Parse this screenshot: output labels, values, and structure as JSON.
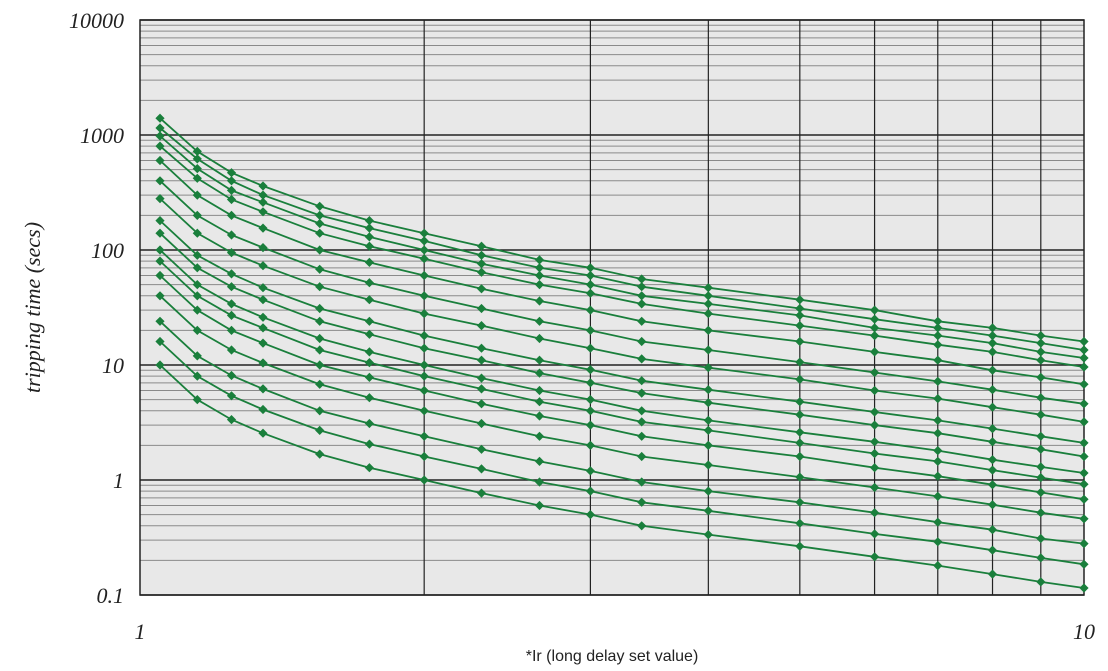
{
  "chart_data": {
    "type": "line",
    "title": "",
    "xlabel": "*Ir (long delay set value)",
    "ylabel": "tripping time (secs)",
    "x_scale": "log",
    "y_scale": "log",
    "xlim": [
      1,
      10
    ],
    "ylim": [
      0.1,
      10000
    ],
    "x_tick_labels": [
      "1",
      "10"
    ],
    "y_tick_labels": [
      "10000",
      "1000",
      "100",
      "10",
      "1",
      "0.1"
    ],
    "grid": true,
    "legend": "none",
    "colors": {
      "series": "#1a7f3c",
      "plot_background": "#e8e8e8",
      "major_grid": "#222222",
      "minor_grid": "#8a8a8a"
    },
    "x": [
      1.05,
      1.15,
      1.25,
      1.35,
      1.55,
      1.75,
      2.0,
      2.3,
      2.65,
      3.0,
      3.4,
      4.0,
      5.0,
      6.0,
      7.0,
      8.0,
      9.0,
      10.0
    ],
    "series": [
      {
        "values": [
          1400,
          720,
          470,
          360,
          240,
          180,
          140,
          108,
          82,
          70,
          56,
          47,
          37,
          30,
          24,
          21,
          18,
          16
        ]
      },
      {
        "values": [
          1150,
          620,
          400,
          300,
          200,
          155,
          120,
          90,
          70,
          60,
          48,
          40,
          31,
          25,
          21,
          18,
          15.5,
          13.5
        ]
      },
      {
        "values": [
          980,
          510,
          330,
          260,
          170,
          130,
          100,
          76,
          60,
          50,
          40,
          34,
          27,
          21,
          18,
          15.5,
          13,
          11.5
        ]
      },
      {
        "values": [
          800,
          420,
          275,
          215,
          140,
          108,
          84,
          64,
          50,
          42,
          34,
          28,
          22,
          18,
          15,
          13,
          11,
          9.6
        ]
      },
      {
        "values": [
          600,
          300,
          200,
          155,
          100,
          78,
          60,
          46,
          36,
          30,
          24,
          20,
          16,
          13,
          11,
          9,
          7.8,
          6.8
        ]
      },
      {
        "values": [
          400,
          200,
          135,
          105,
          68,
          52,
          40,
          31,
          24,
          20,
          16,
          13.5,
          10.6,
          8.6,
          7.2,
          6.1,
          5.2,
          4.6
        ]
      },
      {
        "values": [
          280,
          140,
          95,
          73,
          48,
          37,
          28,
          22,
          17,
          14,
          11.3,
          9.5,
          7.5,
          6,
          5.1,
          4.3,
          3.7,
          3.2
        ]
      },
      {
        "values": [
          180,
          90,
          62,
          47,
          31,
          24,
          18,
          14,
          11,
          9.1,
          7.3,
          6.1,
          4.8,
          3.9,
          3.3,
          2.8,
          2.4,
          2.1
        ]
      },
      {
        "values": [
          140,
          70,
          48,
          37,
          24,
          18.5,
          14,
          11,
          8.5,
          7,
          5.7,
          4.7,
          3.7,
          3,
          2.55,
          2.15,
          1.85,
          1.6
        ]
      },
      {
        "values": [
          100,
          50,
          34,
          26,
          17,
          13,
          10,
          7.7,
          6,
          5,
          4,
          3.3,
          2.6,
          2.15,
          1.8,
          1.5,
          1.3,
          1.15
        ]
      },
      {
        "values": [
          80,
          40,
          27,
          21,
          13.5,
          10.5,
          8,
          6.2,
          4.8,
          4,
          3.2,
          2.7,
          2.1,
          1.7,
          1.45,
          1.22,
          1.05,
          0.92
        ]
      },
      {
        "values": [
          60,
          30,
          20,
          15.5,
          10,
          7.8,
          6,
          4.6,
          3.6,
          3,
          2.4,
          2,
          1.6,
          1.28,
          1.08,
          0.91,
          0.78,
          0.68
        ]
      },
      {
        "values": [
          40,
          20,
          13.5,
          10.4,
          6.8,
          5.2,
          4,
          3.1,
          2.4,
          2,
          1.6,
          1.35,
          1.06,
          0.86,
          0.72,
          0.61,
          0.52,
          0.46
        ]
      },
      {
        "values": [
          24,
          12,
          8.1,
          6.2,
          4,
          3.1,
          2.4,
          1.85,
          1.45,
          1.2,
          0.96,
          0.8,
          0.64,
          0.52,
          0.43,
          0.37,
          0.31,
          0.28
        ]
      },
      {
        "values": [
          16,
          8,
          5.4,
          4.1,
          2.7,
          2.05,
          1.6,
          1.25,
          0.96,
          0.8,
          0.64,
          0.54,
          0.42,
          0.34,
          0.29,
          0.245,
          0.21,
          0.185
        ]
      },
      {
        "values": [
          10,
          5,
          3.35,
          2.55,
          1.68,
          1.28,
          1.0,
          0.77,
          0.6,
          0.5,
          0.4,
          0.335,
          0.265,
          0.215,
          0.18,
          0.152,
          0.13,
          0.115
        ]
      }
    ]
  }
}
